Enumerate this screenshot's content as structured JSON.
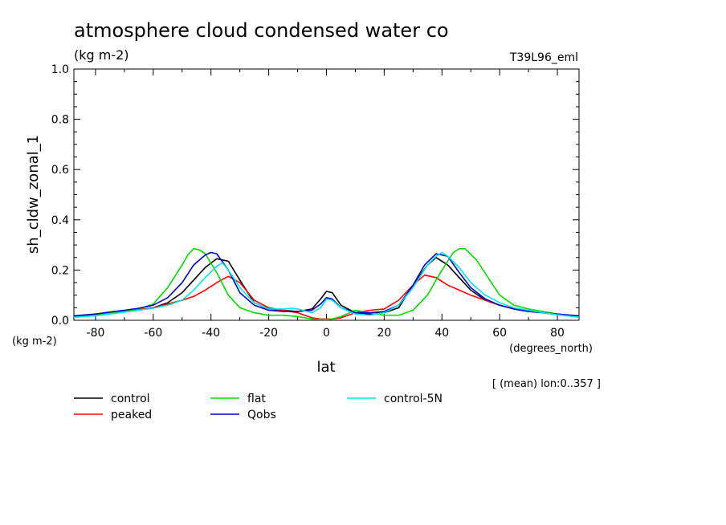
{
  "chart_data": {
    "type": "line",
    "title": "atmosphere cloud condensed water co",
    "subtitle": "(kg m-2)",
    "experiment": "T39L96_eml",
    "xlabel": "lat",
    "xunits": "(degrees_north)",
    "ylabel": "sh_cldw_zonal_1",
    "yunits": "(kg m-2)",
    "footnote": "[ (mean) lon:0..357 ]",
    "xlim": [
      -87.5,
      87.5
    ],
    "ylim": [
      0,
      1.0
    ],
    "x_ticks": [
      -80,
      -60,
      -40,
      -20,
      0,
      20,
      40,
      60,
      80
    ],
    "x_tick_labels": [
      "-80",
      "-60",
      "-40",
      "-20",
      "0",
      "20",
      "40",
      "60",
      "80"
    ],
    "y_ticks": [
      0,
      0.2,
      0.4,
      0.6,
      0.8,
      1.0
    ],
    "y_tick_labels": [
      "0.0",
      "0.2",
      "0.4",
      "0.6",
      "0.8",
      "1.0"
    ],
    "grid": false,
    "legend_position": "bottom",
    "series": [
      {
        "name": "control",
        "color": "#000000",
        "x": [
          -87.5,
          -80,
          -75,
          -70,
          -65,
          -60,
          -55,
          -50,
          -46,
          -42,
          -38,
          -34,
          -30,
          -25,
          -20,
          -15,
          -10,
          -5,
          -2,
          0,
          2,
          5,
          10,
          15,
          20,
          25,
          30,
          35,
          38,
          42,
          46,
          50,
          55,
          60,
          65,
          70,
          75,
          80,
          87.5
        ],
        "y": [
          0.015,
          0.022,
          0.03,
          0.035,
          0.042,
          0.05,
          0.07,
          0.11,
          0.16,
          0.21,
          0.245,
          0.235,
          0.16,
          0.07,
          0.045,
          0.04,
          0.035,
          0.045,
          0.085,
          0.115,
          0.11,
          0.06,
          0.03,
          0.025,
          0.03,
          0.05,
          0.14,
          0.22,
          0.25,
          0.22,
          0.17,
          0.12,
          0.08,
          0.06,
          0.045,
          0.035,
          0.03,
          0.022,
          0.015
        ]
      },
      {
        "name": "peaked",
        "color": "#ff0000",
        "x": [
          -87.5,
          -80,
          -75,
          -70,
          -65,
          -60,
          -55,
          -50,
          -46,
          -42,
          -38,
          -34,
          -30,
          -25,
          -20,
          -15,
          -10,
          -5,
          -2,
          0,
          2,
          5,
          10,
          15,
          20,
          25,
          30,
          34,
          38,
          42,
          46,
          50,
          55,
          60,
          65,
          70,
          75,
          80,
          87.5
        ],
        "y": [
          0.015,
          0.022,
          0.03,
          0.035,
          0.042,
          0.05,
          0.065,
          0.08,
          0.095,
          0.12,
          0.15,
          0.175,
          0.15,
          0.08,
          0.05,
          0.04,
          0.03,
          0.01,
          0.005,
          0.005,
          0.005,
          0.01,
          0.03,
          0.04,
          0.045,
          0.08,
          0.14,
          0.18,
          0.17,
          0.14,
          0.12,
          0.1,
          0.08,
          0.06,
          0.045,
          0.035,
          0.03,
          0.022,
          0.015
        ]
      },
      {
        "name": "flat",
        "color": "#00dd00",
        "x": [
          -87.5,
          -80,
          -75,
          -70,
          -65,
          -60,
          -55,
          -50,
          -48,
          -46,
          -44,
          -42,
          -38,
          -34,
          -30,
          -25,
          -20,
          -15,
          -10,
          -5,
          -2,
          0,
          2,
          5,
          10,
          15,
          20,
          25,
          30,
          35,
          40,
          44,
          46,
          48,
          52,
          56,
          60,
          65,
          70,
          75,
          80,
          87.5
        ],
        "y": [
          0.012,
          0.02,
          0.028,
          0.035,
          0.045,
          0.065,
          0.13,
          0.22,
          0.26,
          0.285,
          0.28,
          0.265,
          0.19,
          0.1,
          0.05,
          0.03,
          0.02,
          0.02,
          0.015,
          0.005,
          0.003,
          0.003,
          0.005,
          0.015,
          0.04,
          0.03,
          0.02,
          0.02,
          0.04,
          0.1,
          0.2,
          0.27,
          0.285,
          0.285,
          0.24,
          0.17,
          0.1,
          0.06,
          0.045,
          0.035,
          0.025,
          0.015
        ]
      },
      {
        "name": "Qobs",
        "color": "#0000cc",
        "x": [
          -87.5,
          -80,
          -75,
          -70,
          -65,
          -60,
          -55,
          -50,
          -46,
          -42,
          -40,
          -38,
          -34,
          -30,
          -25,
          -20,
          -15,
          -10,
          -5,
          -2,
          0,
          2,
          5,
          10,
          15,
          20,
          25,
          30,
          34,
          38,
          42,
          46,
          50,
          55,
          60,
          65,
          70,
          75,
          80,
          87.5
        ],
        "y": [
          0.018,
          0.025,
          0.033,
          0.04,
          0.048,
          0.06,
          0.09,
          0.15,
          0.22,
          0.26,
          0.27,
          0.265,
          0.2,
          0.11,
          0.06,
          0.04,
          0.035,
          0.035,
          0.04,
          0.065,
          0.09,
          0.085,
          0.05,
          0.03,
          0.03,
          0.035,
          0.06,
          0.14,
          0.22,
          0.265,
          0.255,
          0.19,
          0.13,
          0.085,
          0.06,
          0.045,
          0.035,
          0.03,
          0.025,
          0.018
        ]
      },
      {
        "name": "control-5N",
        "color": "#00e5ee",
        "x": [
          -87.5,
          -80,
          -75,
          -70,
          -65,
          -60,
          -55,
          -50,
          -46,
          -42,
          -38,
          -36,
          -34,
          -30,
          -25,
          -20,
          -15,
          -12,
          -10,
          -5,
          -2,
          0,
          2,
          5,
          10,
          15,
          20,
          25,
          30,
          35,
          38,
          40,
          42,
          46,
          50,
          55,
          60,
          65,
          70,
          75,
          80,
          87.5
        ],
        "y": [
          0.012,
          0.018,
          0.025,
          0.032,
          0.04,
          0.048,
          0.06,
          0.08,
          0.12,
          0.17,
          0.215,
          0.228,
          0.2,
          0.13,
          0.07,
          0.045,
          0.045,
          0.048,
          0.045,
          0.03,
          0.05,
          0.085,
          0.08,
          0.05,
          0.025,
          0.02,
          0.03,
          0.06,
          0.13,
          0.22,
          0.255,
          0.27,
          0.255,
          0.21,
          0.15,
          0.1,
          0.07,
          0.05,
          0.04,
          0.03,
          0.022,
          0.012
        ]
      }
    ]
  }
}
